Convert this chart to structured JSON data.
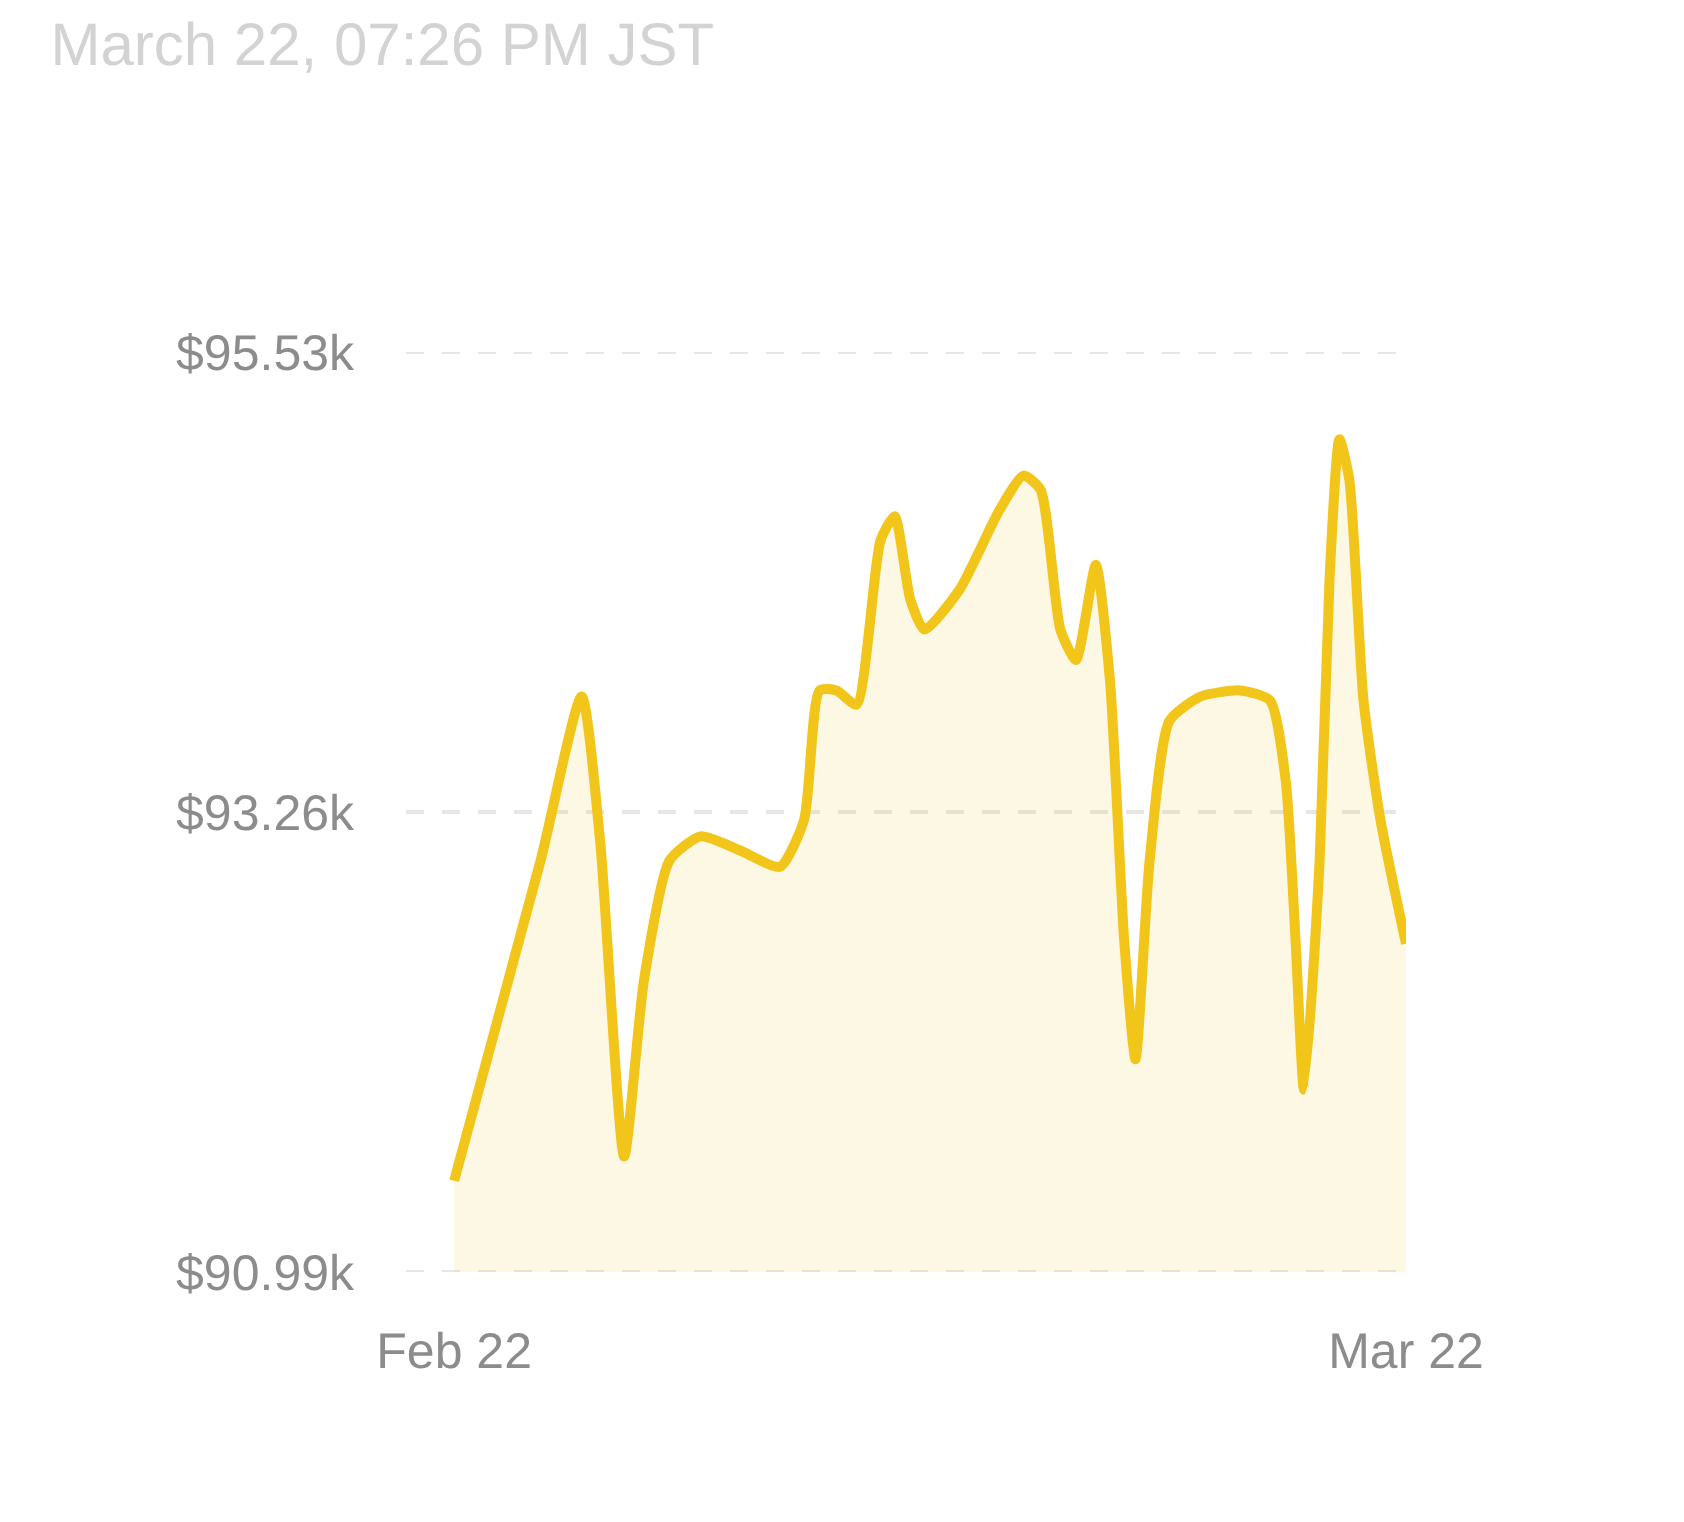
{
  "chart_data": {
    "type": "area",
    "title": "March 22, 07:26 PM JST",
    "x": [
      "--02-22T00:00",
      "--02-24T13:00",
      "--02-25T18:00",
      "--02-26T07:00",
      "--02-27T00:00",
      "--02-27T14:00",
      "--02-28T08:00",
      "--03-01T06:00",
      "--03-02T10:00",
      "--03-03T14:00",
      "--03-04T07:00",
      "--03-04T18:00",
      "--03-05T06:00",
      "--03-05T20:00",
      "--03-06T13:00",
      "--03-06T23:00",
      "--03-07T10:00",
      "--03-07T20:00",
      "--03-08T21:00",
      "--03-10T01:00",
      "--03-10T18:00",
      "--03-11T06:00",
      "--03-11T20:00",
      "--03-12T07:00",
      "--03-12T21:00",
      "--03-13T07:00",
      "--03-13T17:00",
      "--03-14T01:00",
      "--03-14T11:00",
      "--03-15T01:00",
      "--03-15T23:00",
      "--03-17T03:00",
      "--03-18T00:00",
      "--03-18T11:00",
      "--03-18T18:00",
      "--03-19T00:00",
      "--03-19T11:00",
      "--03-19T18:00",
      "--03-20T01:00",
      "--03-20T08:00",
      "--03-20T18:00",
      "--03-21T06:00",
      "--03-22T00:00"
    ],
    "series": [
      {
        "color": "#f2c51a",
        "values": [
          91.44,
          93.02,
          93.83,
          93.12,
          91.56,
          92.43,
          93.02,
          93.14,
          93.07,
          92.99,
          93.22,
          93.86,
          93.86,
          93.79,
          94.6,
          94.72,
          94.31,
          94.16,
          94.36,
          94.75,
          94.92,
          94.85,
          94.16,
          94.01,
          94.48,
          93.91,
          92.63,
          92.04,
          93.02,
          93.71,
          93.83,
          93.86,
          93.81,
          93.42,
          92.63,
          91.89,
          93.02,
          94.41,
          95.1,
          94.9,
          93.81,
          93.22,
          92.61
        ]
      }
    ],
    "ylim": [
      90.99,
      95.53
    ],
    "yticks": [
      {
        "value": 90.99,
        "label": "$90.99k"
      },
      {
        "value": 93.26,
        "label": "$93.26k"
      },
      {
        "value": 95.53,
        "label": "$95.53k"
      }
    ],
    "xlim": [
      "--02-20T14:00",
      "--03-22"
    ],
    "xticks": [
      {
        "value": "--02-22",
        "label": "Feb 22"
      },
      {
        "value": "--03-22",
        "label": "Mar 22"
      }
    ],
    "grid": "y",
    "marker": "none",
    "line_style": "solid"
  }
}
